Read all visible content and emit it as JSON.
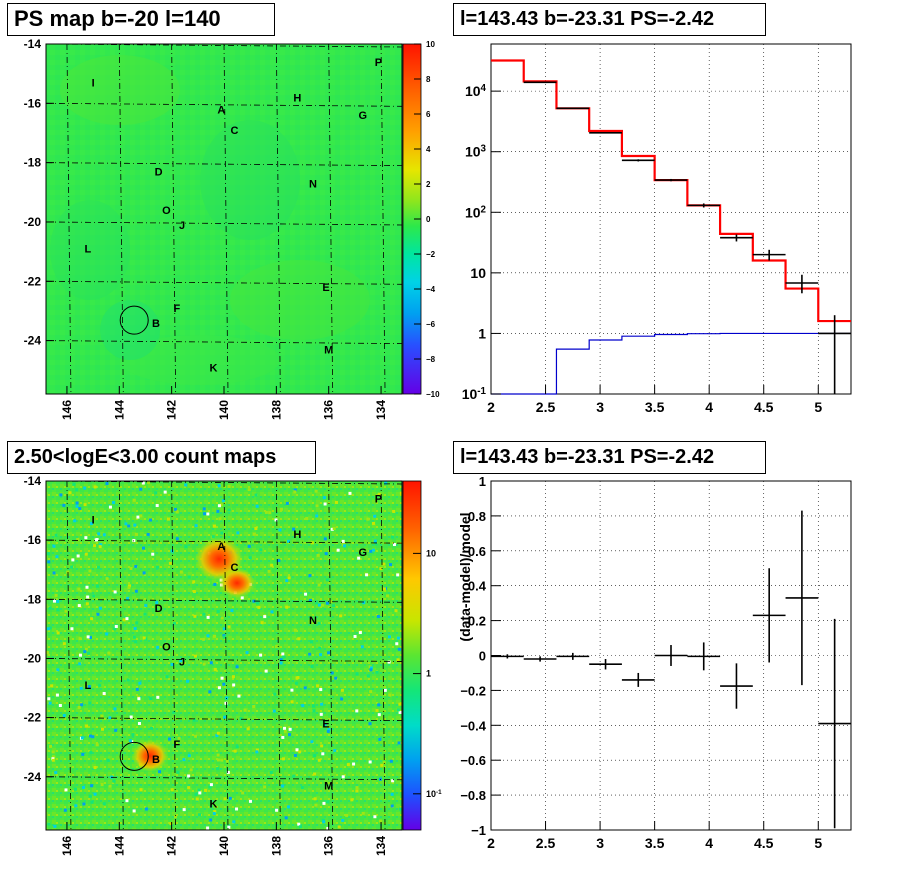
{
  "panels": {
    "ps_map_title": "PS map b=-20 l=140",
    "spectrum_title": "l=143.43 b=-23.31 PS=-2.42",
    "count_map_title": "2.50<logE<3.00 count maps",
    "residual_title": "l=143.43 b=-23.31 PS=-2.42"
  },
  "colors": {
    "model_line": "#ff0000",
    "background_line": "#0000cc",
    "data_marker": "#000000",
    "map_base": "#33e84d"
  },
  "chart_data": [
    {
      "id": "ps_map",
      "type": "heatmap",
      "title": "PS map b=-20 l=140",
      "x_ticks": [
        "146",
        "144",
        "142",
        "140",
        "138",
        "136",
        "134"
      ],
      "x_tick_values": [
        146,
        144,
        142,
        140,
        138,
        136,
        134
      ],
      "xlim": [
        146.8,
        133.2
      ],
      "y_ticks": [
        "-14",
        "-16",
        "-18",
        "-20",
        "-22",
        "-24"
      ],
      "y_tick_values": [
        -14,
        -16,
        -18,
        -20,
        -22,
        -24
      ],
      "ylim": [
        -25.8,
        -14
      ],
      "colorbar_ticks": [
        "10",
        "8",
        "6",
        "4",
        "2",
        "0",
        "−2",
        "−4",
        "−6",
        "−8",
        "−10"
      ],
      "colorbar_range": [
        -10,
        10
      ],
      "sources": [
        {
          "label": "P",
          "l": 134.1,
          "b": -14.6
        },
        {
          "label": "I",
          "l": 145.0,
          "b": -15.3
        },
        {
          "label": "H",
          "l": 137.2,
          "b": -15.8
        },
        {
          "label": "G",
          "l": 134.7,
          "b": -16.4
        },
        {
          "label": "A",
          "l": 140.1,
          "b": -16.2
        },
        {
          "label": "C",
          "l": 139.6,
          "b": -16.9
        },
        {
          "label": "D",
          "l": 142.5,
          "b": -18.3
        },
        {
          "label": "N",
          "l": 136.6,
          "b": -18.7
        },
        {
          "label": "O",
          "l": 142.2,
          "b": -19.6
        },
        {
          "label": "J",
          "l": 141.6,
          "b": -20.1
        },
        {
          "label": "L",
          "l": 145.2,
          "b": -20.9
        },
        {
          "label": "E",
          "l": 136.1,
          "b": -22.2
        },
        {
          "label": "F",
          "l": 141.8,
          "b": -22.9
        },
        {
          "label": "B",
          "l": 142.6,
          "b": -23.4
        },
        {
          "label": "M",
          "l": 136.0,
          "b": -24.3
        },
        {
          "label": "K",
          "l": 140.4,
          "b": -24.9
        }
      ],
      "highlight_source": {
        "l": 143.43,
        "b": -23.31
      }
    },
    {
      "id": "spectrum",
      "type": "line",
      "title": "l=143.43 b=-23.31 PS=-2.42",
      "xlabel": "",
      "ylabel": "",
      "xlim": [
        2,
        5.3
      ],
      "ylim": [
        0.1,
        60000
      ],
      "y_scale": "log",
      "x_ticks": [
        "2",
        "2.5",
        "3",
        "3.5",
        "4",
        "4.5",
        "5"
      ],
      "x_tick_values": [
        2,
        2.5,
        3,
        3.5,
        4,
        4.5,
        5
      ],
      "y_ticks": [
        "10^{-1}",
        "1",
        "10",
        "10^{2}",
        "10^{3}",
        "10^{4}"
      ],
      "y_tick_values": [
        0.1,
        1,
        10,
        100,
        1000,
        10000
      ],
      "bin_edges": [
        2.0,
        2.3,
        2.6,
        2.9,
        3.2,
        3.5,
        3.8,
        4.1,
        4.4,
        4.7,
        5.0,
        5.3
      ],
      "series": [
        {
          "name": "",
          "role": "model",
          "values": [
            32000,
            14500,
            5200,
            2200,
            850,
            340,
            130,
            44,
            16,
            5.5,
            1.6
          ]
        },
        {
          "name": "",
          "role": "background",
          "values": [
            0.1,
            0.1,
            0.55,
            0.78,
            0.9,
            0.96,
            0.99,
            1.0,
            1.0,
            1.0,
            1.0
          ]
        }
      ],
      "data_points": [
        {
          "x": 2.45,
          "y": 14000,
          "xerr": 0.15,
          "ylo": 13700,
          "yhi": 14300
        },
        {
          "x": 2.75,
          "y": 5200,
          "xerr": 0.15,
          "ylo": 5100,
          "yhi": 5300
        },
        {
          "x": 3.05,
          "y": 2050,
          "xerr": 0.15,
          "ylo": 2000,
          "yhi": 2100
        },
        {
          "x": 3.35,
          "y": 720,
          "xerr": 0.15,
          "ylo": 690,
          "yhi": 750
        },
        {
          "x": 3.65,
          "y": 340,
          "xerr": 0.15,
          "ylo": 325,
          "yhi": 355
        },
        {
          "x": 3.95,
          "y": 130,
          "xerr": 0.15,
          "ylo": 120,
          "yhi": 140
        },
        {
          "x": 4.25,
          "y": 38,
          "xerr": 0.15,
          "ylo": 33,
          "yhi": 43
        },
        {
          "x": 4.55,
          "y": 20,
          "xerr": 0.15,
          "ylo": 16,
          "yhi": 24
        },
        {
          "x": 4.85,
          "y": 6.8,
          "xerr": 0.15,
          "ylo": 4.6,
          "yhi": 9.3
        },
        {
          "x": 5.15,
          "y": 1.0,
          "xerr": 0.15,
          "ylo": 0.1,
          "yhi": 2.0
        }
      ]
    },
    {
      "id": "count_map",
      "type": "heatmap",
      "title": "2.50<logE<3.00 count maps",
      "x_ticks": [
        "146",
        "144",
        "142",
        "140",
        "138",
        "136",
        "134"
      ],
      "x_tick_values": [
        146,
        144,
        142,
        140,
        138,
        136,
        134
      ],
      "xlim": [
        146.8,
        133.2
      ],
      "y_ticks": [
        "-14",
        "-16",
        "-18",
        "-20",
        "-22",
        "-24"
      ],
      "y_tick_values": [
        -14,
        -16,
        -18,
        -20,
        -22,
        -24
      ],
      "ylim": [
        -25.8,
        -14
      ],
      "colorbar_scale": "log",
      "colorbar_ticks": [
        "10",
        "1",
        "10^{-1}"
      ],
      "colorbar_range": [
        0.05,
        40
      ],
      "bright_sources": [
        "A",
        "C",
        "B"
      ],
      "highlight_source": {
        "l": 143.43,
        "b": -23.31
      }
    },
    {
      "id": "residuals",
      "type": "scatter",
      "title": "l=143.43 b=-23.31 PS=-2.42",
      "xlabel": "",
      "ylabel": "(data-model)/model",
      "xlim": [
        2,
        5.3
      ],
      "ylim": [
        -1,
        1
      ],
      "x_ticks": [
        "2",
        "2.5",
        "3",
        "3.5",
        "4",
        "4.5",
        "5"
      ],
      "x_tick_values": [
        2,
        2.5,
        3,
        3.5,
        4,
        4.5,
        5
      ],
      "y_ticks": [
        "1",
        "0.8",
        "0.6",
        "0.4",
        "0.2",
        "0",
        "−0.2",
        "−0.4",
        "−0.6",
        "−0.8",
        "−1"
      ],
      "y_tick_values": [
        1,
        0.8,
        0.6,
        0.4,
        0.2,
        0,
        -0.2,
        -0.4,
        -0.6,
        -0.8,
        -1
      ],
      "data_points": [
        {
          "x": 2.15,
          "y": -0.005,
          "xerr": 0.15,
          "yerr": 0.012
        },
        {
          "x": 2.45,
          "y": -0.02,
          "xerr": 0.15,
          "yerr": 0.015
        },
        {
          "x": 2.75,
          "y": -0.005,
          "xerr": 0.15,
          "yerr": 0.02
        },
        {
          "x": 3.05,
          "y": -0.05,
          "xerr": 0.15,
          "yerr": 0.03
        },
        {
          "x": 3.35,
          "y": -0.14,
          "xerr": 0.15,
          "yerr": 0.04
        },
        {
          "x": 3.65,
          "y": 0.0,
          "xerr": 0.15,
          "yerr": 0.06
        },
        {
          "x": 3.95,
          "y": -0.005,
          "xerr": 0.15,
          "yerr": 0.08
        },
        {
          "x": 4.25,
          "y": -0.175,
          "xerr": 0.15,
          "yerr": 0.13
        },
        {
          "x": 4.55,
          "y": 0.23,
          "xerr": 0.15,
          "yerr": 0.27
        },
        {
          "x": 4.85,
          "y": 0.33,
          "xerr": 0.15,
          "yerr": 0.5
        },
        {
          "x": 5.15,
          "y": -0.39,
          "xerr": 0.15,
          "yerr": 0.6
        }
      ]
    }
  ]
}
